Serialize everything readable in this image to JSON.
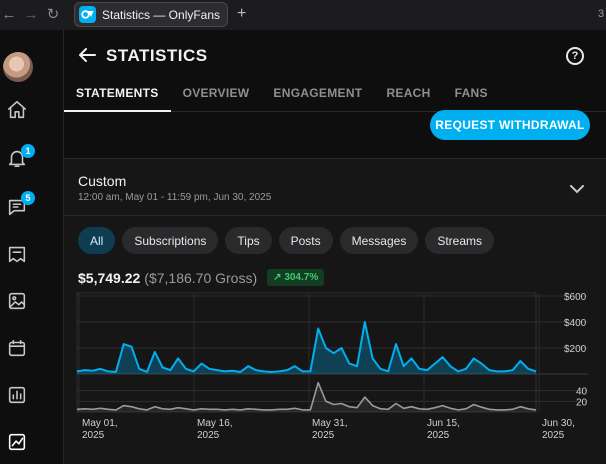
{
  "browser": {
    "tab_title": "Statistics — OnlyFans",
    "new_tab": "+",
    "edge_number": "3"
  },
  "sidebar": {
    "items": [
      {
        "icon": "home-icon"
      },
      {
        "icon": "bell-icon",
        "badge": "1"
      },
      {
        "icon": "message-icon",
        "badge": "5"
      },
      {
        "icon": "collections-icon"
      },
      {
        "icon": "media-icon"
      },
      {
        "icon": "calendar-icon"
      },
      {
        "icon": "bar-chart-icon"
      },
      {
        "icon": "statistics-icon"
      }
    ]
  },
  "header": {
    "title": "STATISTICS",
    "help": "?",
    "tabs": [
      "STATEMENTS",
      "OVERVIEW",
      "ENGAGEMENT",
      "REACH",
      "FANS"
    ],
    "active_tab": "STATEMENTS"
  },
  "actions": {
    "withdraw_label": "REQUEST WITHDRAWAL"
  },
  "period": {
    "label": "Custom",
    "range": "12:00 am, May 01 - 11:59 pm, Jun 30, 2025"
  },
  "filters": {
    "items": [
      "All",
      "Subscriptions",
      "Tips",
      "Posts",
      "Messages",
      "Streams"
    ],
    "active": "All"
  },
  "totals": {
    "net": "$5,749.22",
    "gross": "($7,186.70 Gross)",
    "growth": "304.7%"
  },
  "colors": {
    "accent": "#00aff0",
    "growth_green": "#3ecb6b",
    "secondary_line": "#9a9a9a"
  },
  "chart_data": [
    {
      "type": "area",
      "title": "",
      "y_ticks": [
        "$600",
        "$400",
        "$200"
      ],
      "ylim": [
        0,
        600
      ],
      "x_ticks": [
        "May 01, 2025",
        "May 16, 2025",
        "May 31, 2025",
        "Jun 15, 2025",
        "Jun 30, 2025"
      ],
      "series": [
        {
          "values": [
            20,
            30,
            25,
            40,
            20,
            15,
            230,
            210,
            40,
            15,
            170,
            50,
            30,
            120,
            40,
            20,
            80,
            40,
            30,
            20,
            25,
            15,
            60,
            30,
            20,
            15,
            20,
            30,
            60,
            20,
            20,
            350,
            200,
            160,
            200,
            80,
            60,
            400,
            120,
            40,
            20,
            230,
            60,
            120,
            40,
            30,
            80,
            130,
            60,
            20,
            40,
            120,
            80,
            30,
            20,
            20,
            30,
            100,
            40,
            20
          ]
        }
      ]
    },
    {
      "type": "line",
      "title": "",
      "y_ticks": [
        "40",
        "20"
      ],
      "ylim": [
        0,
        60
      ],
      "series": [
        {
          "values": [
            5,
            6,
            5,
            7,
            5,
            4,
            12,
            10,
            6,
            4,
            10,
            6,
            5,
            8,
            6,
            4,
            6,
            5,
            5,
            4,
            5,
            4,
            6,
            5,
            4,
            4,
            5,
            5,
            7,
            4,
            4,
            55,
            20,
            14,
            16,
            10,
            8,
            28,
            12,
            6,
            5,
            16,
            7,
            10,
            6,
            5,
            8,
            12,
            7,
            4,
            6,
            14,
            9,
            5,
            4,
            4,
            5,
            10,
            6,
            4
          ]
        }
      ]
    }
  ]
}
